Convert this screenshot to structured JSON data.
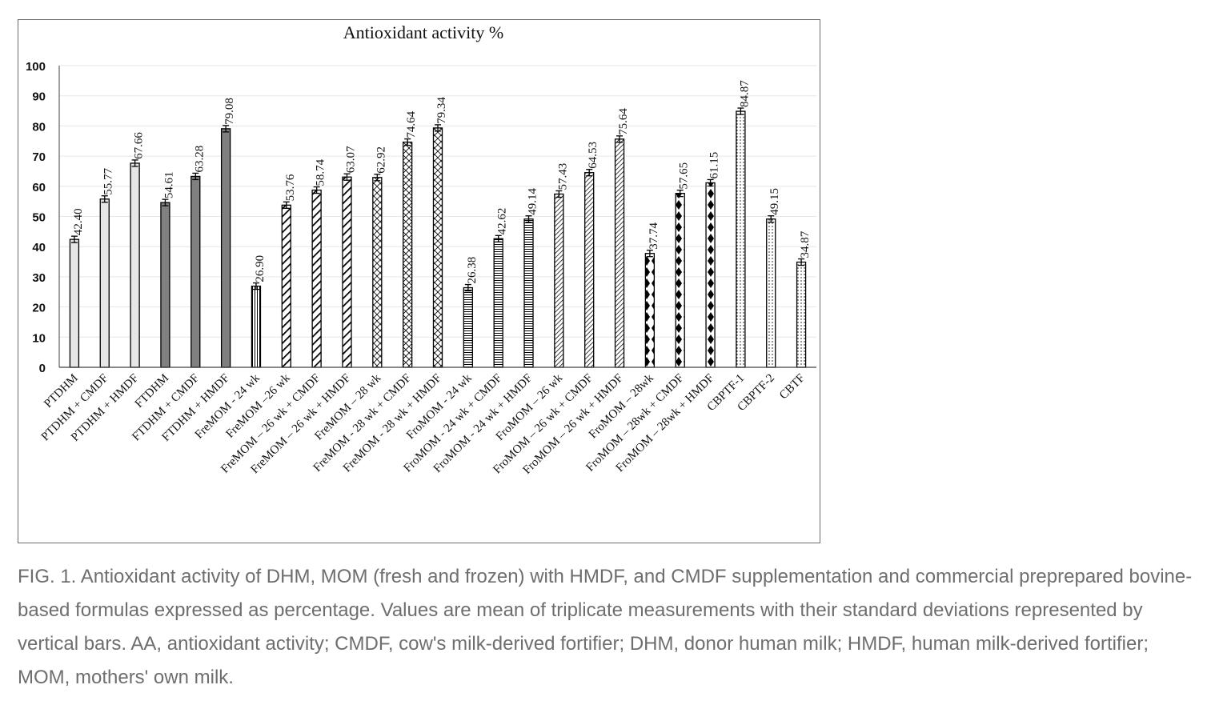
{
  "chart_data": {
    "type": "bar",
    "title": "Antioxidant activity %",
    "xlabel": "",
    "ylabel": "",
    "ylim": [
      0,
      100
    ],
    "yticks": [
      "0",
      "10",
      "20",
      "30",
      "40",
      "50",
      "60",
      "70",
      "80",
      "90",
      "100"
    ],
    "grid": true,
    "legend": "none",
    "error_bars": true,
    "categories": [
      "PTDHM",
      "PTDHM + CMDF",
      "PTDHM + HMDF",
      "FTDHM",
      "FTDHM + CMDF",
      "FTDHM + HMDF",
      "FreMOM - 24 wk",
      "FreMOM –26 wk",
      "FreMOM – 26 wk + CMDF",
      "FreMOM – 26 wk + HMDF",
      "FreMOM – 28 wk",
      "FreMOM - 28 wk + CMDF",
      "FreMOM - 28 wk + HMDF",
      "FroMOM - 24 wk",
      "FroMOM - 24 wk + CMDF",
      "FroMOM - 24 wk + HMDF",
      "FroMOM – 26 wk",
      "FroMOM – 26 wk + CMDF",
      "FroMOM – 26 wk + HMDF",
      "FroMOM – 28wk",
      "FroMOM – 28wk + CMDF",
      "FroMOM – 28wk + HMDF",
      "CBPTF-1",
      "CBPTF-2",
      "CBTF"
    ],
    "values": [
      42.4,
      55.77,
      67.66,
      54.61,
      63.28,
      79.08,
      26.9,
      53.76,
      58.74,
      63.07,
      62.92,
      74.64,
      79.34,
      26.38,
      42.62,
      49.14,
      57.43,
      64.53,
      75.64,
      37.74,
      57.65,
      61.15,
      84.87,
      49.15,
      34.87
    ],
    "labels": [
      "42.40",
      "55.77",
      "67.66",
      "54.61",
      "63.28",
      "79.08",
      "26.90",
      "53.76",
      "58.74",
      "63.07",
      "62.92",
      "74.64",
      "79.34",
      "26.38",
      "42.62",
      "49.14",
      "57.43",
      "64.53",
      "75.64",
      "37.74",
      "57.65",
      "61.15",
      "84.87",
      "49.15",
      "34.87"
    ],
    "patterns": [
      "light",
      "light",
      "light",
      "dark",
      "dark",
      "dark",
      "vlines",
      "diag",
      "diag",
      "diag",
      "cross",
      "cross",
      "cross",
      "hlines",
      "hlines",
      "hlines",
      "diag-fine",
      "diag-fine",
      "diag-fine",
      "diamond",
      "diamond",
      "diamond",
      "dots",
      "dots",
      "dots"
    ],
    "colors": {
      "bar_stroke": "#000000",
      "light_fill": "#e6e6e6",
      "dark_fill": "#808080",
      "grid": "#e6e6e6",
      "axis": "#404040"
    }
  },
  "caption": "FIG. 1. Antioxidant activity of DHM, MOM (fresh and frozen) with HMDF, and CMDF supplementation and commercial preprepared bovine-based formulas expressed as percentage. Values are mean of triplicate measurements with their standard deviations represented by vertical bars. AA, antioxidant activity; CMDF, cow's milk-derived fortifier; DHM, donor human milk; HMDF, human milk-derived fortifier; MOM, mothers' own milk."
}
